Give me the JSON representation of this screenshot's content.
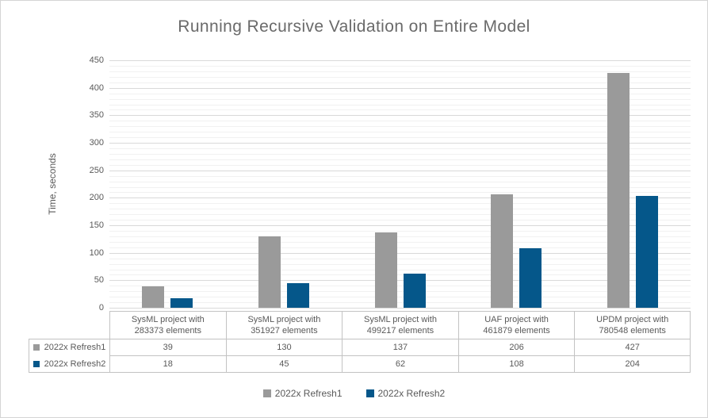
{
  "chart_data": {
    "type": "bar",
    "title": "Running Recursive Validation on Entire Model",
    "xlabel": "",
    "ylabel": "Time, seconds",
    "categories": [
      "SysML project with 283373 elements",
      "SysML project with 351927 elements",
      "SysML project with 499217 elements",
      "UAF project with 461879 elements",
      "UPDM project with 780548 elements"
    ],
    "category_lines": [
      [
        "SysML project with",
        "283373 elements"
      ],
      [
        "SysML project with",
        "351927 elements"
      ],
      [
        "SysML project with",
        "499217 elements"
      ],
      [
        "UAF project with",
        "461879 elements"
      ],
      [
        "UPDM project with",
        "780548 elements"
      ]
    ],
    "series": [
      {
        "name": "2022x Refresh1",
        "color": "#9a9a9a",
        "values": [
          39,
          130,
          137,
          206,
          427
        ]
      },
      {
        "name": "2022x Refresh2",
        "color": "#05578a",
        "values": [
          18,
          45,
          62,
          108,
          204
        ]
      }
    ],
    "ylim": [
      0,
      450
    ],
    "y_ticks": [
      0,
      50,
      100,
      150,
      200,
      250,
      300,
      350,
      400,
      450
    ],
    "y_minor_step": 10,
    "grid": true,
    "legend_position": "bottom",
    "data_table_shown": true
  },
  "colors": {
    "series1": "#9a9a9a",
    "series2": "#05578a",
    "grid_major": "#d9d9d9",
    "grid_minor": "#f1f1f1",
    "table_border": "#c3c3c3",
    "text": "#595959",
    "title_text": "#6a6a6a"
  }
}
